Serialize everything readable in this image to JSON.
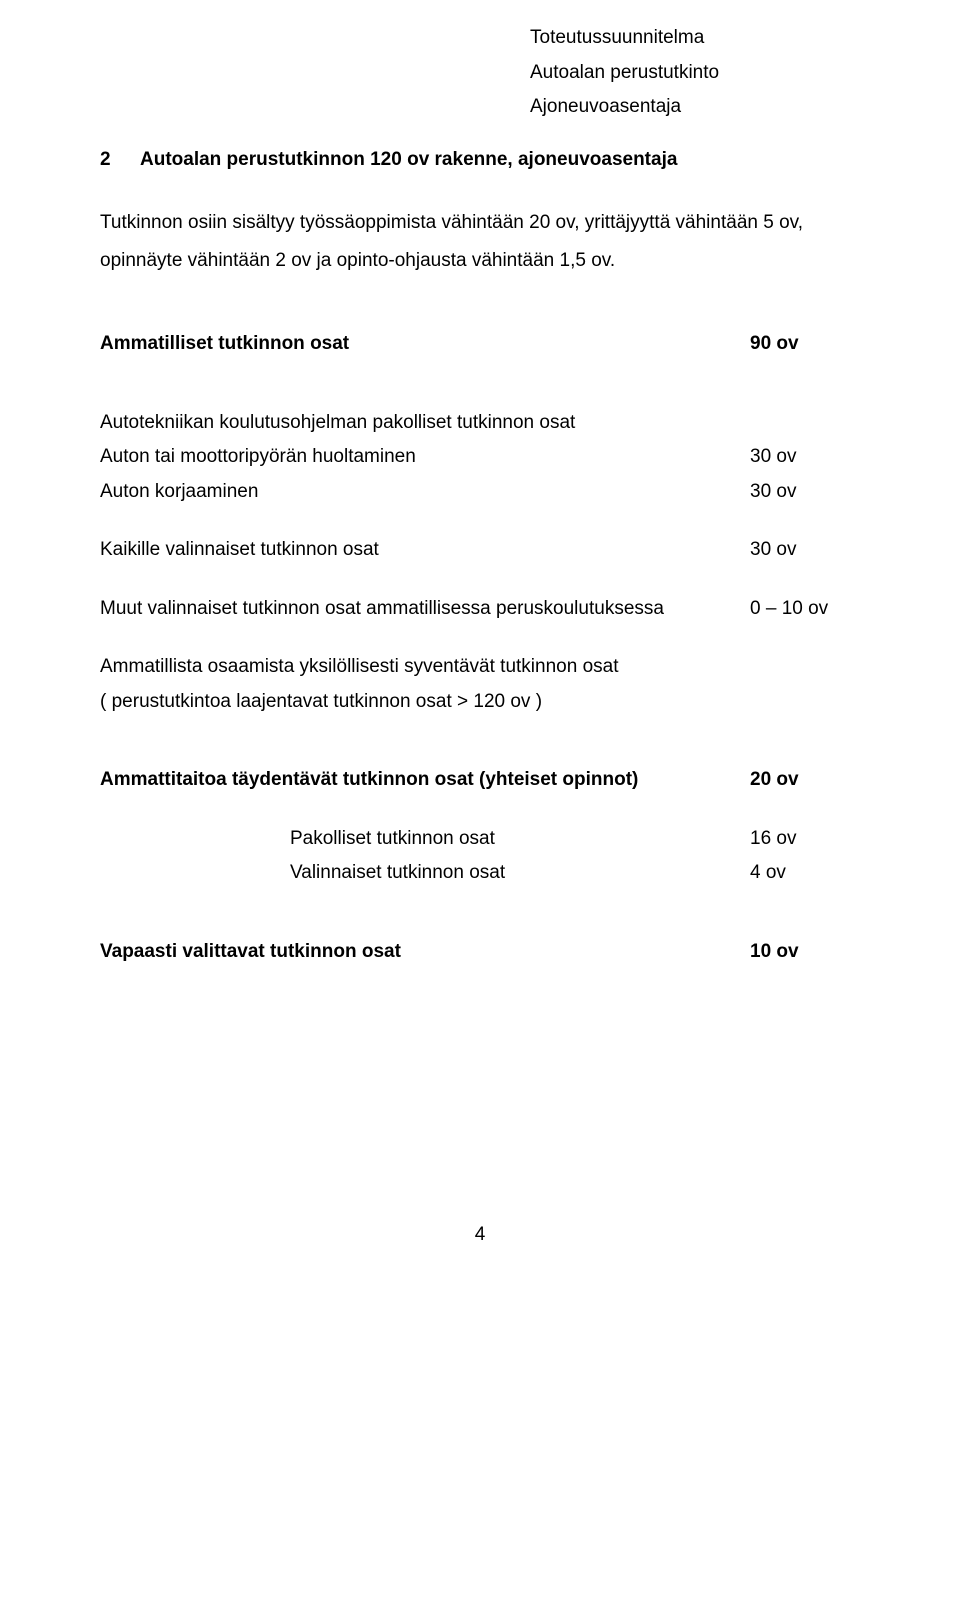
{
  "header": {
    "line1": "Toteutussuunnitelma",
    "line2": "Autoalan perustutkinto",
    "line3": "Ajoneuvoasentaja"
  },
  "section": {
    "number": "2",
    "title": "Autoalan perustutkinnon 120 ov rakenne, ajoneuvoasentaja"
  },
  "intro": "Tutkinnon osiin sisältyy työssäoppimista vähintään 20 ov, yrittäjyyttä vähintään 5 ov, opinnäyte vähintään 2 ov ja opinto-ohjausta vähintään 1,5 ov.",
  "block1": {
    "heading": "Ammatilliset tutkinnon osat",
    "heading_val": "90 ov",
    "sub1": "Autotekniikan koulutusohjelman pakolliset tutkinnon osat",
    "row1": "Auton tai moottoripyörän huoltaminen",
    "row1_val": "30 ov",
    "row2": "Auton korjaaminen",
    "row2_val": "30 ov",
    "row3": "Kaikille valinnaiset tutkinnon osat",
    "row3_val": "30 ov",
    "row4": "Muut valinnaiset tutkinnon osat ammatillisessa peruskoulutuksessa",
    "row4_val": "0 – 10 ov",
    "row5a": "Ammatillista osaamista yksilöllisesti syventävät tutkinnon osat",
    "row5b": "( perustutkintoa laajentavat tutkinnon osat > 120 ov )"
  },
  "block2": {
    "heading": "Ammattitaitoa täydentävät tutkinnon osat (yhteiset opinnot)",
    "heading_val": "20 ov",
    "row1": "Pakolliset tutkinnon osat",
    "row1_val": "16 ov",
    "row2": "Valinnaiset tutkinnon osat",
    "row2_val": "4 ov"
  },
  "block3": {
    "heading": "Vapaasti valittavat tutkinnon osat",
    "heading_val": "10 ov"
  },
  "page_number": "4"
}
